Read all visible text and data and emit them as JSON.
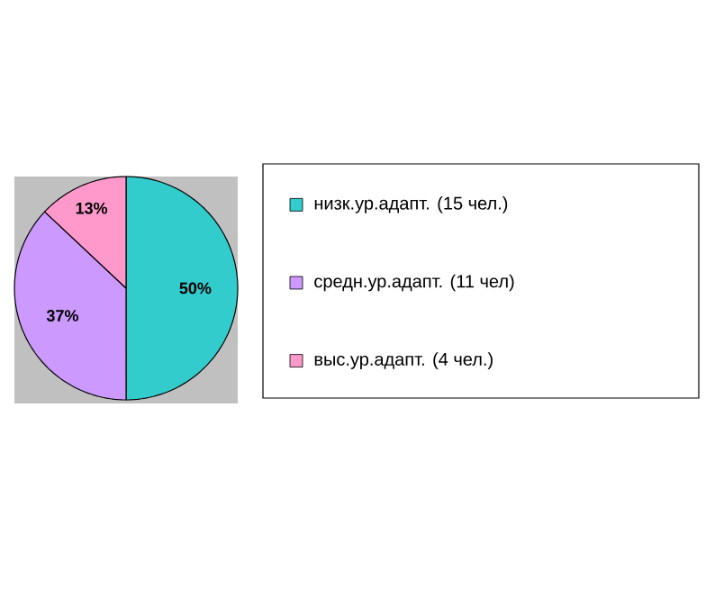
{
  "chart_data": {
    "type": "pie",
    "categories": [
      "низк.ур.адапт. (15 чел.)",
      "средн.ур.адапт. (11 чел)",
      "выс.ур.адапт. (4 чел.)"
    ],
    "values": [
      50,
      37,
      13
    ],
    "value_labels": [
      "50%",
      "37%",
      "13%"
    ],
    "colors": [
      "#33cccc",
      "#cc99ff",
      "#ff99cc"
    ],
    "legend": "right"
  }
}
